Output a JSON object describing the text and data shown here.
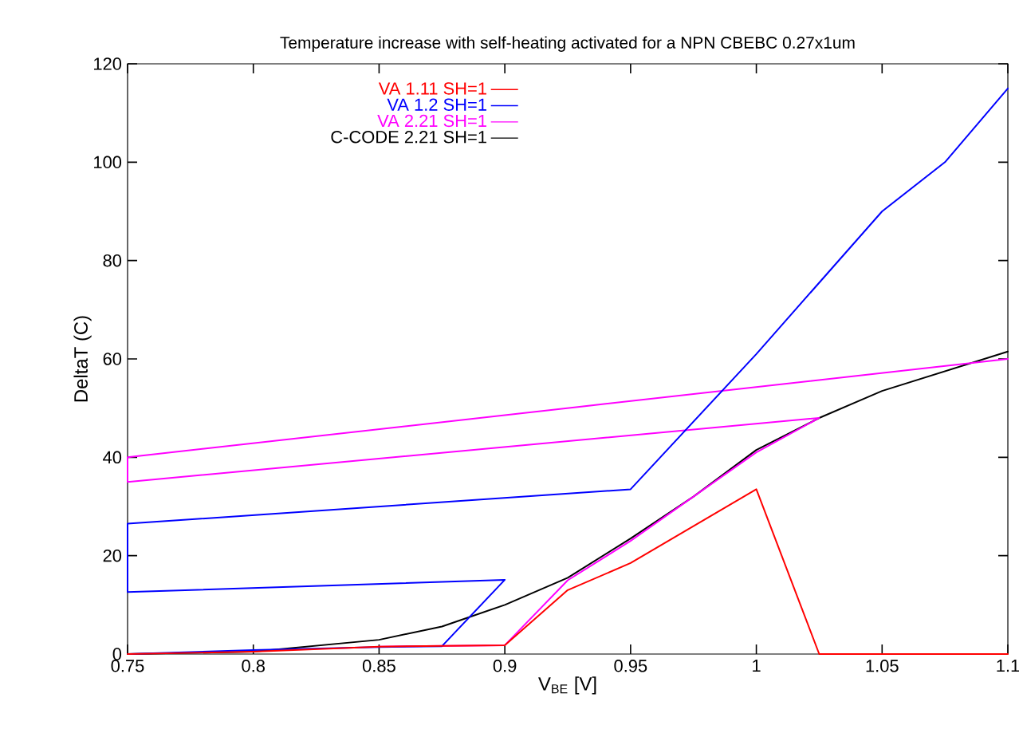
{
  "chart_data": {
    "type": "line",
    "title": "Temperature increase with self-heating activated for a NPN CBEBC 0.27x1um",
    "xlabel": "V$_{BE}$ [V]",
    "ylabel": "DeltaT (C)",
    "xlim": [
      0.75,
      1.1
    ],
    "ylim": [
      0,
      120
    ],
    "xticks": [
      0.75,
      0.8,
      0.85,
      0.9,
      0.95,
      1,
      1.05,
      1.1
    ],
    "yticks": [
      0,
      20,
      40,
      60,
      80,
      100,
      120
    ],
    "grid": false,
    "legend": "top left",
    "series": [
      {
        "name": "VA 1.11 SH=1",
        "color": "#ff0000",
        "x": [
          0.75,
          0.8,
          0.85,
          0.9,
          0.925,
          0.95,
          1.0,
          1.025,
          1.1
        ],
        "values": [
          0,
          0.5,
          1.5,
          1.8,
          13,
          18.5,
          33.5,
          0,
          0
        ]
      },
      {
        "name": "VA 1.2 SH=1",
        "color": "#0000ff",
        "x": [
          0.75,
          0.8,
          0.85,
          0.875,
          0.9,
          0.75,
          0.75,
          0.95,
          1.0,
          1.05,
          1.075,
          1.1
        ],
        "values": [
          0,
          0.8,
          1.4,
          1.6,
          15.1,
          12.6,
          26.5,
          33.5,
          61,
          90,
          100,
          115
        ]
      },
      {
        "name": "VA 2.21 SH=1",
        "color": "#ff00ff",
        "x": [
          0.85,
          0.9,
          0.925,
          0.95,
          1.0,
          1.025,
          0.75,
          0.75,
          1.1
        ],
        "values": [
          1.5,
          1.8,
          15,
          23,
          41,
          48,
          35,
          40,
          60
        ]
      },
      {
        "name": "C-CODE 2.21 SH=1",
        "color": "#000000",
        "x": [
          0.75,
          0.8,
          0.85,
          0.875,
          0.9,
          0.925,
          0.95,
          0.975,
          1.0,
          1.025,
          1.05,
          1.075,
          1.1
        ],
        "values": [
          0,
          0.5,
          2.9,
          5.6,
          10,
          15.5,
          23.5,
          32,
          41.5,
          48,
          53.5,
          57.5,
          61.5
        ]
      }
    ]
  }
}
